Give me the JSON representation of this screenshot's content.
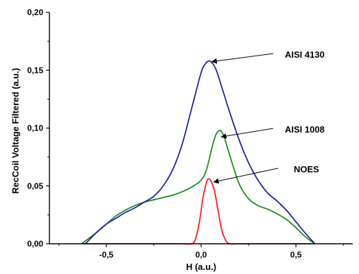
{
  "chart_data": {
    "type": "line",
    "xlabel": "H (a.u.)",
    "ylabel": "RecCoil Voltage Filtered (a.u.)",
    "xlim": [
      -0.8,
      0.8
    ],
    "ylim": [
      0.0,
      0.2
    ],
    "xticks": [
      -0.5,
      0.0,
      0.5
    ],
    "xtick_labels": [
      "-0,5",
      "0,0",
      "0,5"
    ],
    "yticks": [
      0.0,
      0.05,
      0.1,
      0.15,
      0.2
    ],
    "ytick_labels": [
      "0,00",
      "0,05",
      "0,10",
      "0,15",
      "0,20"
    ],
    "grid": false,
    "series": [
      {
        "name": "AISI 4130",
        "color": "#1f1fa8",
        "x": [
          -0.61,
          -0.55,
          -0.5,
          -0.45,
          -0.4,
          -0.35,
          -0.3,
          -0.25,
          -0.2,
          -0.15,
          -0.1,
          -0.05,
          0.0,
          0.02,
          0.04,
          0.06,
          0.08,
          0.1,
          0.15,
          0.2,
          0.25,
          0.3,
          0.35,
          0.4,
          0.45,
          0.5,
          0.55,
          0.6
        ],
        "y": [
          0.0,
          0.01,
          0.017,
          0.022,
          0.027,
          0.031,
          0.036,
          0.041,
          0.05,
          0.064,
          0.086,
          0.117,
          0.148,
          0.155,
          0.158,
          0.156,
          0.15,
          0.14,
          0.114,
          0.09,
          0.07,
          0.055,
          0.044,
          0.037,
          0.029,
          0.019,
          0.009,
          0.0
        ]
      },
      {
        "name": "AISI 1008",
        "color": "#1e8a1e",
        "x": [
          -0.63,
          -0.55,
          -0.5,
          -0.45,
          -0.4,
          -0.35,
          -0.3,
          -0.25,
          -0.2,
          -0.15,
          -0.1,
          -0.05,
          0.0,
          0.03,
          0.06,
          0.08,
          0.1,
          0.12,
          0.15,
          0.2,
          0.25,
          0.3,
          0.35,
          0.4,
          0.45,
          0.5,
          0.55,
          0.6
        ],
        "y": [
          0.0,
          0.01,
          0.017,
          0.024,
          0.029,
          0.033,
          0.036,
          0.038,
          0.04,
          0.042,
          0.045,
          0.049,
          0.055,
          0.065,
          0.085,
          0.095,
          0.098,
          0.093,
          0.077,
          0.052,
          0.039,
          0.033,
          0.03,
          0.026,
          0.021,
          0.014,
          0.006,
          0.0
        ]
      },
      {
        "name": "NOES",
        "color": "#ff1a1a",
        "x": [
          -0.62,
          -0.5,
          -0.3,
          -0.2,
          -0.1,
          -0.05,
          -0.03,
          -0.01,
          0.01,
          0.03,
          0.04,
          0.05,
          0.07,
          0.09,
          0.11,
          0.13,
          0.15,
          0.2,
          0.3,
          0.4,
          0.5,
          0.6
        ],
        "y": [
          0.0,
          0.0,
          0.0,
          0.0,
          0.0,
          0.0,
          0.004,
          0.018,
          0.04,
          0.054,
          0.056,
          0.055,
          0.046,
          0.028,
          0.011,
          0.003,
          0.0,
          0.0,
          0.0,
          0.0,
          0.0,
          0.0
        ]
      }
    ],
    "annotations": [
      {
        "text": "AISI 4130",
        "series": "AISI 4130",
        "point": [
          0.05,
          0.158
        ]
      },
      {
        "text": "AISI 1008",
        "series": "AISI 1008",
        "point": [
          0.1,
          0.093
        ]
      },
      {
        "text": "NOES",
        "series": "NOES",
        "point": [
          0.06,
          0.054
        ]
      }
    ]
  }
}
